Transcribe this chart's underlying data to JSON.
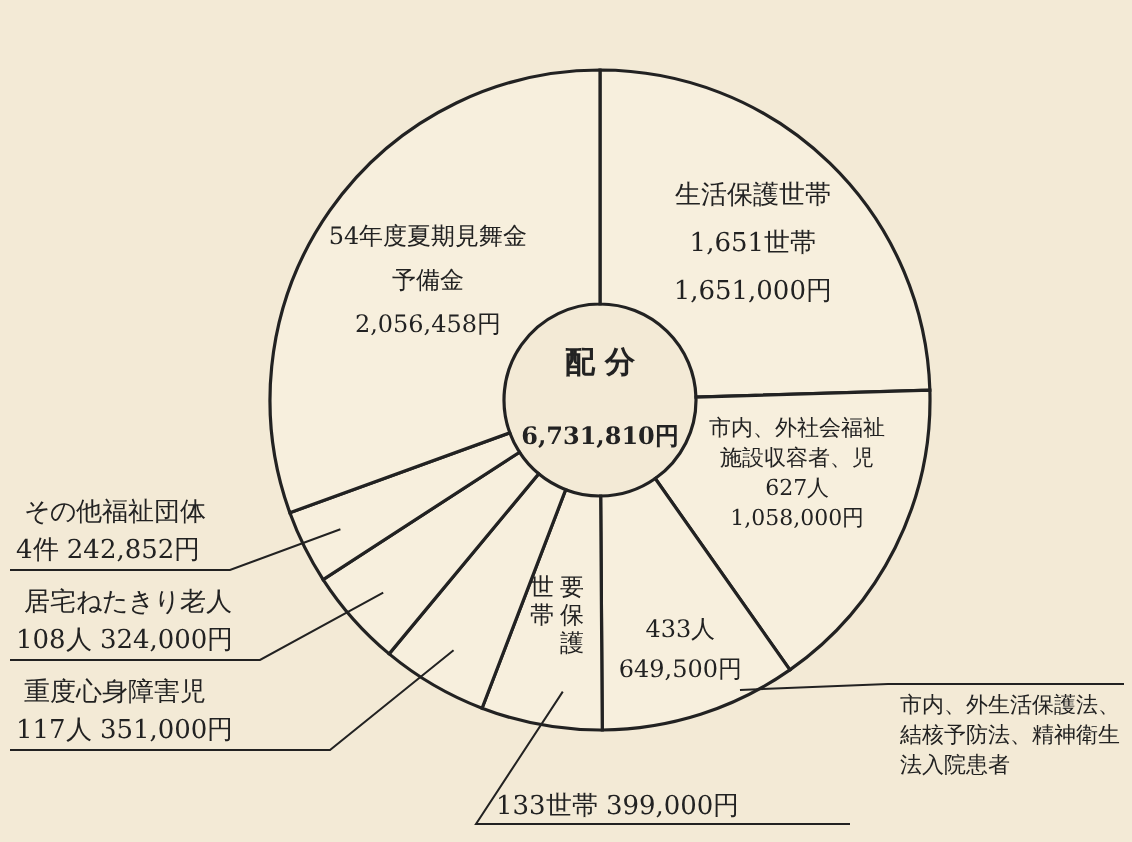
{
  "chart_data": {
    "type": "donut",
    "title": "配 分",
    "annotations": [
      "6,731,810円"
    ],
    "categories": [
      "生活保護世帯",
      "市内、外社会福祉施設収容者、児",
      "市内、外生活保護法、結核予防法、精神衛生法入院患者",
      "要保護世帯",
      "重度心身障害児",
      "居宅ねたきり老人",
      "その他福祉団体",
      "54年度夏期見舞金予備金"
    ],
    "values": [
      1651000,
      1058000,
      649500,
      399000,
      351000,
      324000,
      242852,
      2056458
    ],
    "value_labels": [
      "1,651世帯 1,651,000円",
      "627人 1,058,000円",
      "433人 649,500円",
      "133世帯 399,000円",
      "117人 351,000円",
      "108人 324,000円",
      "4件 242,852円",
      "2,056,458円"
    ],
    "colors": [
      "#f7efdd",
      "#f7efdd",
      "#f7efdd",
      "#f7efdd",
      "#f7efdd",
      "#f7efdd",
      "#f7efdd",
      "#f7efdd"
    ]
  }
}
